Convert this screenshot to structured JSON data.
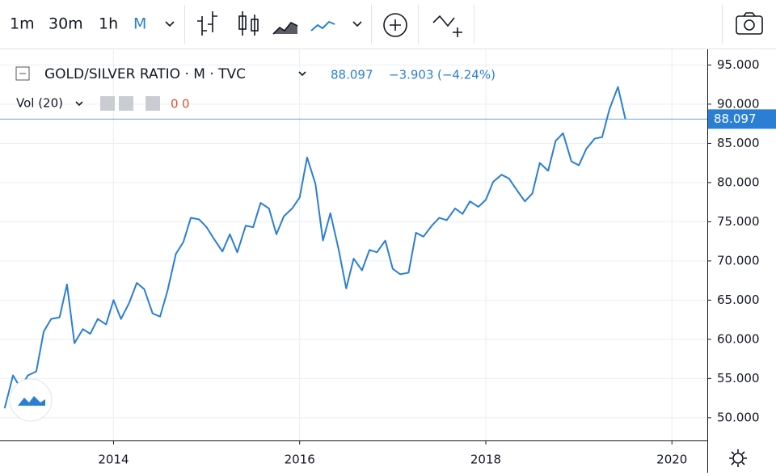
{
  "toolbar": {
    "intervals": [
      "1m",
      "30m",
      "1h",
      "M"
    ]
  },
  "chart_data": {
    "type": "line",
    "title": "GOLD/SILVER RATIO · M · TVC",
    "legend_values": {
      "change": "−3.903",
      "change_pct": "(−4.24%)"
    },
    "volume": {
      "label": "Vol (20)",
      "values": [
        "0",
        "0"
      ]
    },
    "x": [
      2012.83,
      2012.92,
      2013,
      2013.08,
      2013.17,
      2013.25,
      2013.33,
      2013.42,
      2013.5,
      2013.58,
      2013.67,
      2013.75,
      2013.83,
      2013.92,
      2014,
      2014.08,
      2014.17,
      2014.25,
      2014.33,
      2014.42,
      2014.5,
      2014.58,
      2014.67,
      2014.75,
      2014.83,
      2014.92,
      2015,
      2015.08,
      2015.17,
      2015.25,
      2015.33,
      2015.42,
      2015.5,
      2015.58,
      2015.67,
      2015.75,
      2015.83,
      2015.92,
      2016,
      2016.08,
      2016.17,
      2016.25,
      2016.33,
      2016.42,
      2016.5,
      2016.58,
      2016.67,
      2016.75,
      2016.83,
      2016.92,
      2017,
      2017.08,
      2017.17,
      2017.25,
      2017.33,
      2017.42,
      2017.5,
      2017.58,
      2017.67,
      2017.75,
      2017.83,
      2017.92,
      2018,
      2018.08,
      2018.17,
      2018.25,
      2018.33,
      2018.42,
      2018.5,
      2018.58,
      2018.67,
      2018.75,
      2018.83,
      2018.92,
      2019,
      2019.08,
      2019.17,
      2019.25,
      2019.33,
      2019.42,
      2019.5
    ],
    "series": [
      {
        "name": "GOLD/SILVER RATIO",
        "color": "#2a7fd4",
        "values": [
          51.2,
          55.4,
          53.8,
          55.4,
          55.9,
          61.0,
          62.6,
          62.8,
          67.0,
          59.5,
          61.3,
          60.7,
          62.6,
          61.9,
          65.0,
          62.6,
          64.7,
          67.2,
          66.4,
          63.3,
          62.9,
          66.2,
          70.9,
          72.4,
          75.5,
          75.3,
          74.3,
          72.8,
          71.2,
          73.4,
          71.1,
          74.5,
          74.3,
          77.4,
          76.7,
          73.4,
          75.7,
          76.7,
          78.1,
          83.2,
          79.8,
          72.6,
          76.1,
          71.4,
          66.5,
          70.3,
          68.8,
          71.4,
          71.1,
          72.6,
          69.0,
          68.3,
          68.5,
          73.6,
          73.1,
          74.5,
          75.5,
          75.2,
          76.7,
          76.0,
          77.6,
          76.9,
          77.8,
          80.1,
          81.0,
          80.5,
          79.1,
          77.6,
          78.6,
          82.5,
          81.5,
          85.3,
          86.3,
          82.7,
          82.2,
          84.3,
          85.6,
          85.8,
          89.4,
          92.2,
          88.097
        ]
      }
    ],
    "xlim": [
      2012.78,
      2020.38
    ],
    "ylim": [
      47.1,
      97
    ],
    "xticks": [
      2014,
      2016,
      2018,
      2020
    ],
    "yticks": [
      {
        "value": 50,
        "label": "50.000"
      },
      {
        "value": 55,
        "label": "55.000"
      },
      {
        "value": 60,
        "label": "60.000"
      },
      {
        "value": 65,
        "label": "65.000"
      },
      {
        "value": 70,
        "label": "70.000"
      },
      {
        "value": 75,
        "label": "75.000"
      },
      {
        "value": 80,
        "label": "80.000"
      },
      {
        "value": 85,
        "label": "85.000"
      },
      {
        "value": 90,
        "label": "90.000"
      },
      {
        "value": 95,
        "label": "95.000"
      }
    ],
    "grid": true,
    "last_value_line": true
  }
}
